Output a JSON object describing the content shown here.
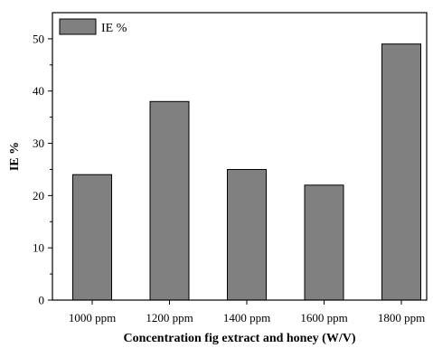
{
  "chart_data": {
    "type": "bar",
    "categories": [
      "1000 ppm",
      "1200 ppm",
      "1400 ppm",
      "1600 ppm",
      "1800 ppm"
    ],
    "series": [
      {
        "name": "IE %",
        "values": [
          24,
          38,
          25,
          22,
          49
        ],
        "color": "#808080"
      }
    ],
    "xlabel": "Concentration  fig extract and honey (W/V)",
    "ylabel": "IE %",
    "ylim": [
      0,
      55
    ],
    "yticks": [
      0,
      10,
      20,
      30,
      40,
      50
    ],
    "grid": false,
    "legend": "top-left"
  }
}
